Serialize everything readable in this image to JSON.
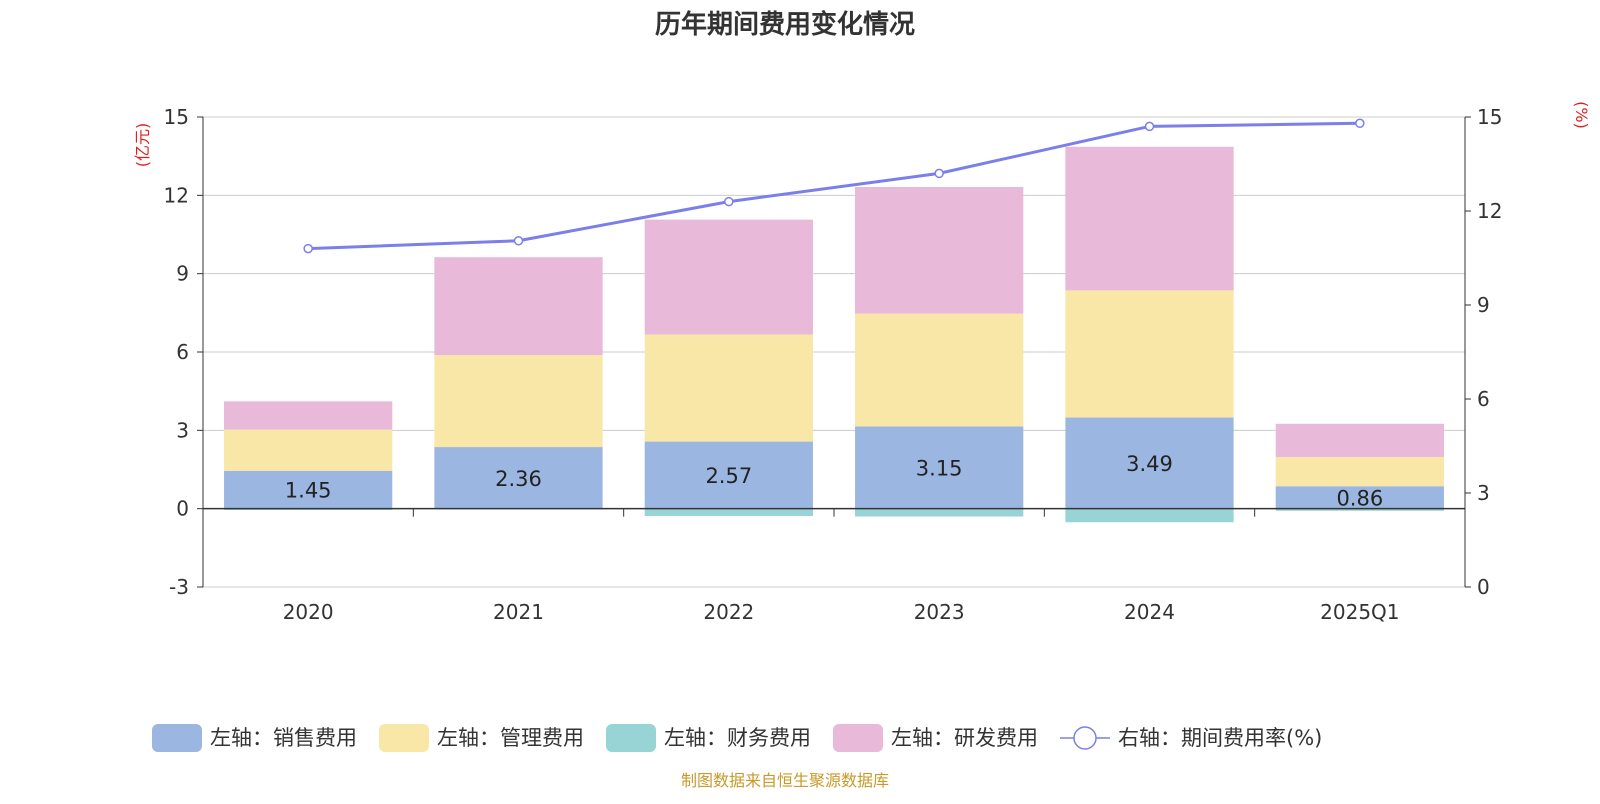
{
  "chart_data": {
    "type": "bar",
    "title": "历年期间费用变化情况",
    "categories": [
      "2020",
      "2021",
      "2022",
      "2023",
      "2024",
      "2025Q1"
    ],
    "left_axis": {
      "unit": "(亿元)",
      "min": -3,
      "max": 15,
      "ticks": [
        -3,
        0,
        3,
        6,
        9,
        12,
        15
      ]
    },
    "right_axis": {
      "unit": "(%)",
      "min": 0,
      "max": 15,
      "ticks": [
        0,
        3,
        6,
        9,
        12,
        15
      ]
    },
    "series": [
      {
        "name": "左轴：销售费用",
        "kind": "bar",
        "axis": "left",
        "color": "#9bb7e1",
        "values": [
          1.45,
          2.36,
          2.57,
          3.15,
          3.49,
          0.86
        ],
        "labels": [
          "1.45",
          "2.36",
          "2.57",
          "3.15",
          "3.49",
          "0.86"
        ]
      },
      {
        "name": "左轴：管理费用",
        "kind": "bar",
        "axis": "left",
        "color": "#f8e7a7",
        "values": [
          1.58,
          3.52,
          4.1,
          4.32,
          4.87,
          1.12
        ]
      },
      {
        "name": "左轴：财务费用",
        "kind": "bar",
        "axis": "left",
        "color": "#98d4d5",
        "values": [
          -0.05,
          -0.02,
          -0.28,
          -0.3,
          -0.52,
          -0.08
        ]
      },
      {
        "name": "左轴：研发费用",
        "kind": "bar",
        "axis": "left",
        "color": "#e8b9d9",
        "values": [
          1.08,
          3.75,
          4.4,
          4.85,
          5.5,
          1.27
        ]
      },
      {
        "name": "右轴：期间费用率(%)",
        "kind": "line",
        "axis": "right",
        "color": "#7b7fe9",
        "values": [
          10.8,
          11.05,
          12.3,
          13.2,
          14.7,
          14.8
        ]
      }
    ],
    "legend_position": "bottom",
    "grid": true
  },
  "source": "制图数据来自恒生聚源数据库",
  "colors": {
    "unit_label": "#e02020",
    "source": "#c79a2a",
    "axis": "#333333",
    "grid": "#cccccc"
  }
}
